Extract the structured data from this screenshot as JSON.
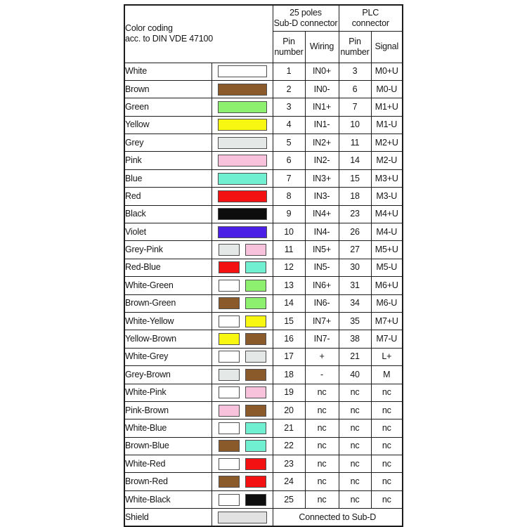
{
  "header": {
    "color_coding": {
      "line1": "Color coding",
      "line2": "acc. to DIN VDE 47100"
    },
    "subd_group": {
      "line1": "25 poles",
      "line2": "Sub-D connector"
    },
    "plc_group": {
      "line1": "PLC",
      "line2": "connector"
    },
    "pin_col": {
      "line1": "Pin",
      "line2": "number"
    },
    "wiring_col": "Wiring",
    "signal_col": "Signal"
  },
  "palette": {
    "white": "#FFFFFF",
    "brown": "#8B5A2B",
    "green": "#8DF06E",
    "yellow": "#F7F711",
    "grey": "#E4E8E7",
    "pink": "#F9C2DC",
    "blue": "#70F0D0",
    "red": "#F31111",
    "black": "#0D0D0D",
    "violet": "#4C1FE6",
    "shield": "#E2E2E2"
  },
  "rows": [
    {
      "name": "White",
      "colors": [
        "#FFFFFF"
      ],
      "sub_pin": "1",
      "wiring": "IN0+",
      "plc_pin": "3",
      "signal": "M0+U"
    },
    {
      "name": "Brown",
      "colors": [
        "#8B5A2B"
      ],
      "sub_pin": "2",
      "wiring": "IN0-",
      "plc_pin": "6",
      "signal": "M0-U"
    },
    {
      "name": "Green",
      "colors": [
        "#8DF06E"
      ],
      "sub_pin": "3",
      "wiring": "IN1+",
      "plc_pin": "7",
      "signal": "M1+U"
    },
    {
      "name": "Yellow",
      "colors": [
        "#F7F711"
      ],
      "sub_pin": "4",
      "wiring": "IN1-",
      "plc_pin": "10",
      "signal": "M1-U"
    },
    {
      "name": "Grey",
      "colors": [
        "#E4E8E7"
      ],
      "sub_pin": "5",
      "wiring": "IN2+",
      "plc_pin": "11",
      "signal": "M2+U"
    },
    {
      "name": "Pink",
      "colors": [
        "#F9C2DC"
      ],
      "sub_pin": "6",
      "wiring": "IN2-",
      "plc_pin": "14",
      "signal": "M2-U"
    },
    {
      "name": "Blue",
      "colors": [
        "#70F0D0"
      ],
      "sub_pin": "7",
      "wiring": "IN3+",
      "plc_pin": "15",
      "signal": "M3+U"
    },
    {
      "name": "Red",
      "colors": [
        "#F31111"
      ],
      "sub_pin": "8",
      "wiring": "IN3-",
      "plc_pin": "18",
      "signal": "M3-U"
    },
    {
      "name": "Black",
      "colors": [
        "#0D0D0D"
      ],
      "sub_pin": "9",
      "wiring": "IN4+",
      "plc_pin": "23",
      "signal": "M4+U"
    },
    {
      "name": "Violet",
      "colors": [
        "#4C1FE6"
      ],
      "sub_pin": "10",
      "wiring": "IN4-",
      "plc_pin": "26",
      "signal": "M4-U"
    },
    {
      "name": "Grey-Pink",
      "colors": [
        "#E4E8E7",
        "#F9C2DC"
      ],
      "sub_pin": "11",
      "wiring": "IN5+",
      "plc_pin": "27",
      "signal": "M5+U"
    },
    {
      "name": "Red-Blue",
      "colors": [
        "#F31111",
        "#70F0D0"
      ],
      "sub_pin": "12",
      "wiring": "IN5-",
      "plc_pin": "30",
      "signal": "M5-U"
    },
    {
      "name": "White-Green",
      "colors": [
        "#FFFFFF",
        "#8DF06E"
      ],
      "sub_pin": "13",
      "wiring": "IN6+",
      "plc_pin": "31",
      "signal": "M6+U"
    },
    {
      "name": "Brown-Green",
      "colors": [
        "#8B5A2B",
        "#8DF06E"
      ],
      "sub_pin": "14",
      "wiring": "IN6-",
      "plc_pin": "34",
      "signal": "M6-U"
    },
    {
      "name": "White-Yellow",
      "colors": [
        "#FFFFFF",
        "#F7F711"
      ],
      "sub_pin": "15",
      "wiring": "IN7+",
      "plc_pin": "35",
      "signal": "M7+U"
    },
    {
      "name": "Yellow-Brown",
      "colors": [
        "#F7F711",
        "#8B5A2B"
      ],
      "sub_pin": "16",
      "wiring": "IN7-",
      "plc_pin": "38",
      "signal": "M7-U"
    },
    {
      "name": "White-Grey",
      "colors": [
        "#FFFFFF",
        "#E4E8E7"
      ],
      "sub_pin": "17",
      "wiring": "+",
      "plc_pin": "21",
      "signal": "L+"
    },
    {
      "name": "Grey-Brown",
      "colors": [
        "#E4E8E7",
        "#8B5A2B"
      ],
      "sub_pin": "18",
      "wiring": "-",
      "plc_pin": "40",
      "signal": "M"
    },
    {
      "name": "White-Pink",
      "colors": [
        "#FFFFFF",
        "#F9C2DC"
      ],
      "sub_pin": "19",
      "wiring": "nc",
      "plc_pin": "nc",
      "signal": "nc"
    },
    {
      "name": "Pink-Brown",
      "colors": [
        "#F9C2DC",
        "#8B5A2B"
      ],
      "sub_pin": "20",
      "wiring": "nc",
      "plc_pin": "nc",
      "signal": "nc"
    },
    {
      "name": "White-Blue",
      "colors": [
        "#FFFFFF",
        "#70F0D0"
      ],
      "sub_pin": "21",
      "wiring": "nc",
      "plc_pin": "nc",
      "signal": "nc"
    },
    {
      "name": "Brown-Blue",
      "colors": [
        "#8B5A2B",
        "#70F0D0"
      ],
      "sub_pin": "22",
      "wiring": "nc",
      "plc_pin": "nc",
      "signal": "nc"
    },
    {
      "name": "White-Red",
      "colors": [
        "#FFFFFF",
        "#F31111"
      ],
      "sub_pin": "23",
      "wiring": "nc",
      "plc_pin": "nc",
      "signal": "nc"
    },
    {
      "name": "Brown-Red",
      "colors": [
        "#8B5A2B",
        "#F31111"
      ],
      "sub_pin": "24",
      "wiring": "nc",
      "plc_pin": "nc",
      "signal": "nc"
    },
    {
      "name": "White-Black",
      "colors": [
        "#FFFFFF",
        "#0D0D0D"
      ],
      "sub_pin": "25",
      "wiring": "nc",
      "plc_pin": "nc",
      "signal": "nc"
    }
  ],
  "shield_row": {
    "name": "Shield",
    "colors": [
      "#E2E2E2"
    ],
    "note": "Connected to Sub-D"
  }
}
